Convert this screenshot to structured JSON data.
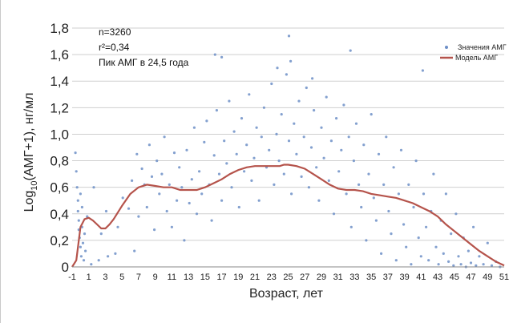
{
  "chart_data": {
    "type": "scatter",
    "xlabel": "Возраст, лет",
    "ylabel": "Log",
    "ylabel_sub": "10",
    "ylabel_rest": "(АМГ+1), нг/мл",
    "xlim": [
      -1,
      51
    ],
    "ylim": [
      0,
      1.8
    ],
    "x_ticks": [
      "-1",
      "1",
      "3",
      "5",
      "7",
      "9",
      "11",
      "13",
      "15",
      "17",
      "19",
      "21",
      "23",
      "25",
      "27",
      "29",
      "31",
      "33",
      "35",
      "37",
      "39",
      "41",
      "43",
      "45",
      "47",
      "49",
      "51"
    ],
    "y_ticks": [
      "0",
      "0,2",
      "0,4",
      "0,6",
      "0,8",
      "1,0",
      "1,2",
      "1,4",
      "1,6",
      "1,8"
    ],
    "grid": true,
    "legend_position": "top-right",
    "annotations": [
      "n=3260",
      "r²=0,34",
      "Пик АМГ в 24,5 года"
    ],
    "series": [
      {
        "name": "Значения АМГ",
        "type": "scatter",
        "color": "#6d8fc7",
        "points": [
          [
            -0.6,
            0.86
          ],
          [
            -0.5,
            0.72
          ],
          [
            -0.4,
            0.6
          ],
          [
            -0.3,
            0.5
          ],
          [
            -0.3,
            0.42
          ],
          [
            -0.2,
            0.35
          ],
          [
            -0.2,
            0.28
          ],
          [
            -0.1,
            0.22
          ],
          [
            0.0,
            0.55
          ],
          [
            0.0,
            0.15
          ],
          [
            0.1,
            0.08
          ],
          [
            0.2,
            0.3
          ],
          [
            0.2,
            0.45
          ],
          [
            0.3,
            0.18
          ],
          [
            0.4,
            0.05
          ],
          [
            0.5,
            0.25
          ],
          [
            0.6,
            0.12
          ],
          [
            0.8,
            0.38
          ],
          [
            1.3,
            0.02
          ],
          [
            1.6,
            0.6
          ],
          [
            2.2,
            0.05
          ],
          [
            2.5,
            0.25
          ],
          [
            3.1,
            0.42
          ],
          [
            3.3,
            0.08
          ],
          [
            4.2,
            0.1
          ],
          [
            4.5,
            0.3
          ],
          [
            5.1,
            0.52
          ],
          [
            5.8,
            0.44
          ],
          [
            6.2,
            0.65
          ],
          [
            6.5,
            0.12
          ],
          [
            6.8,
            0.85
          ],
          [
            7.0,
            0.38
          ],
          [
            7.4,
            0.74
          ],
          [
            7.7,
            0.62
          ],
          [
            8.0,
            0.45
          ],
          [
            8.3,
            0.92
          ],
          [
            8.6,
            0.68
          ],
          [
            8.9,
            0.28
          ],
          [
            9.2,
            0.8
          ],
          [
            9.5,
            0.55
          ],
          [
            9.8,
            0.7
          ],
          [
            10.1,
            0.98
          ],
          [
            10.4,
            0.42
          ],
          [
            10.7,
            0.62
          ],
          [
            11.0,
            0.3
          ],
          [
            11.3,
            0.86
          ],
          [
            11.6,
            0.5
          ],
          [
            11.9,
            0.75
          ],
          [
            12.2,
            0.6
          ],
          [
            12.5,
            0.2
          ],
          [
            12.8,
            0.88
          ],
          [
            13.1,
            0.48
          ],
          [
            13.4,
            0.66
          ],
          [
            13.7,
            1.05
          ],
          [
            14.0,
            0.4
          ],
          [
            14.3,
            0.72
          ],
          [
            14.6,
            0.55
          ],
          [
            14.9,
            0.94
          ],
          [
            15.2,
            1.1
          ],
          [
            15.5,
            0.62
          ],
          [
            15.8,
            0.35
          ],
          [
            16.1,
            0.84
          ],
          [
            16.4,
            1.18
          ],
          [
            16.7,
            0.7
          ],
          [
            17.0,
            0.5
          ],
          [
            17.3,
            0.95
          ],
          [
            17.6,
            0.78
          ],
          [
            17.9,
            1.25
          ],
          [
            18.2,
            0.6
          ],
          [
            18.5,
            1.02
          ],
          [
            18.8,
            0.85
          ],
          [
            19.1,
            0.45
          ],
          [
            19.4,
            1.12
          ],
          [
            19.7,
            0.72
          ],
          [
            20.0,
            0.92
          ],
          [
            20.3,
            1.3
          ],
          [
            20.6,
            0.65
          ],
          [
            20.9,
            0.82
          ],
          [
            21.2,
            1.05
          ],
          [
            21.5,
            0.5
          ],
          [
            21.8,
            0.98
          ],
          [
            22.1,
            1.2
          ],
          [
            22.4,
            0.75
          ],
          [
            22.7,
            0.88
          ],
          [
            23.0,
            1.38
          ],
          [
            23.3,
            0.62
          ],
          [
            23.6,
            1.0
          ],
          [
            23.9,
            0.8
          ],
          [
            24.2,
            1.15
          ],
          [
            24.5,
            0.7
          ],
          [
            24.8,
            1.45
          ],
          [
            25.1,
            0.95
          ],
          [
            25.4,
            0.55
          ],
          [
            25.7,
            1.08
          ],
          [
            26.0,
            0.85
          ],
          [
            26.3,
            1.25
          ],
          [
            26.6,
            0.68
          ],
          [
            26.9,
            0.98
          ],
          [
            27.2,
            1.35
          ],
          [
            27.5,
            0.6
          ],
          [
            27.8,
            0.9
          ],
          [
            28.1,
            1.18
          ],
          [
            28.4,
            0.75
          ],
          [
            28.7,
            0.5
          ],
          [
            29.0,
            1.05
          ],
          [
            29.3,
            0.82
          ],
          [
            29.6,
            1.28
          ],
          [
            29.9,
            0.65
          ],
          [
            30.2,
            0.95
          ],
          [
            30.5,
            0.4
          ],
          [
            30.8,
            1.12
          ],
          [
            31.1,
            0.72
          ],
          [
            31.4,
            0.88
          ],
          [
            31.7,
            1.22
          ],
          [
            32.0,
            0.55
          ],
          [
            32.3,
            0.98
          ],
          [
            32.6,
            0.3
          ],
          [
            32.9,
            0.8
          ],
          [
            33.2,
            1.08
          ],
          [
            33.5,
            0.62
          ],
          [
            33.8,
            0.45
          ],
          [
            34.1,
            0.92
          ],
          [
            34.4,
            0.2
          ],
          [
            34.7,
            0.7
          ],
          [
            35.0,
            1.15
          ],
          [
            35.3,
            0.52
          ],
          [
            35.6,
            0.35
          ],
          [
            35.9,
            0.85
          ],
          [
            36.2,
            0.1
          ],
          [
            36.5,
            0.62
          ],
          [
            36.8,
            0.98
          ],
          [
            37.1,
            0.42
          ],
          [
            37.4,
            0.25
          ],
          [
            37.7,
            0.75
          ],
          [
            38.0,
            0.05
          ],
          [
            38.3,
            0.55
          ],
          [
            38.6,
            0.88
          ],
          [
            38.9,
            0.32
          ],
          [
            39.2,
            0.15
          ],
          [
            39.5,
            0.62
          ],
          [
            39.8,
            0.02
          ],
          [
            40.1,
            0.45
          ],
          [
            40.4,
            0.8
          ],
          [
            40.7,
            0.22
          ],
          [
            41.0,
            0.08
          ],
          [
            41.3,
            0.55
          ],
          [
            41.6,
            0.3
          ],
          [
            41.9,
            0.05
          ],
          [
            42.2,
            0.42
          ],
          [
            42.5,
            0.7
          ],
          [
            42.8,
            0.15
          ],
          [
            43.1,
            0.02
          ],
          [
            43.4,
            0.35
          ],
          [
            43.7,
            0.1
          ],
          [
            44.0,
            0.55
          ],
          [
            44.3,
            0.04
          ],
          [
            44.6,
            0.25
          ],
          [
            44.9,
            0.01
          ],
          [
            45.2,
            0.4
          ],
          [
            45.5,
            0.08
          ],
          [
            45.8,
            0.02
          ],
          [
            46.1,
            0.22
          ],
          [
            46.4,
            0.0
          ],
          [
            46.7,
            0.12
          ],
          [
            47.0,
            0.03
          ],
          [
            47.3,
            0.3
          ],
          [
            47.6,
            0.01
          ],
          [
            48.0,
            0.08
          ],
          [
            48.5,
            0.02
          ],
          [
            49.0,
            0.18
          ],
          [
            49.5,
            0.01
          ],
          [
            50.0,
            0.04
          ],
          [
            50.5,
            0.0
          ],
          [
            16.2,
            1.6
          ],
          [
            17.0,
            1.58
          ],
          [
            25.1,
            1.74
          ],
          [
            25.3,
            1.55
          ],
          [
            32.5,
            1.63
          ],
          [
            23.7,
            1.5
          ],
          [
            27.9,
            1.42
          ],
          [
            41.2,
            1.48
          ]
        ]
      },
      {
        "name": "Модель АМГ",
        "type": "line",
        "color": "#b5534b",
        "x": [
          -1,
          -0.5,
          0,
          0.5,
          1,
          1.5,
          2,
          2.5,
          3,
          3.5,
          4,
          5,
          6,
          7,
          8,
          9,
          10,
          11,
          12,
          13,
          14,
          15,
          16,
          17,
          18,
          19,
          20,
          21,
          22,
          23,
          24,
          24.5,
          25,
          26,
          27,
          28,
          29,
          30,
          31,
          32,
          33,
          34,
          35,
          36,
          37,
          38,
          39,
          40,
          41,
          42,
          43,
          44,
          45,
          46,
          47,
          48,
          49,
          50,
          51
        ],
        "y": [
          0.0,
          0.05,
          0.3,
          0.36,
          0.37,
          0.35,
          0.32,
          0.29,
          0.29,
          0.32,
          0.36,
          0.46,
          0.55,
          0.6,
          0.62,
          0.61,
          0.6,
          0.6,
          0.58,
          0.58,
          0.58,
          0.6,
          0.63,
          0.66,
          0.7,
          0.73,
          0.75,
          0.76,
          0.76,
          0.76,
          0.76,
          0.77,
          0.77,
          0.76,
          0.74,
          0.7,
          0.66,
          0.62,
          0.59,
          0.58,
          0.58,
          0.57,
          0.55,
          0.54,
          0.53,
          0.52,
          0.5,
          0.48,
          0.45,
          0.42,
          0.38,
          0.32,
          0.27,
          0.22,
          0.17,
          0.12,
          0.08,
          0.04,
          0.01
        ]
      }
    ]
  }
}
